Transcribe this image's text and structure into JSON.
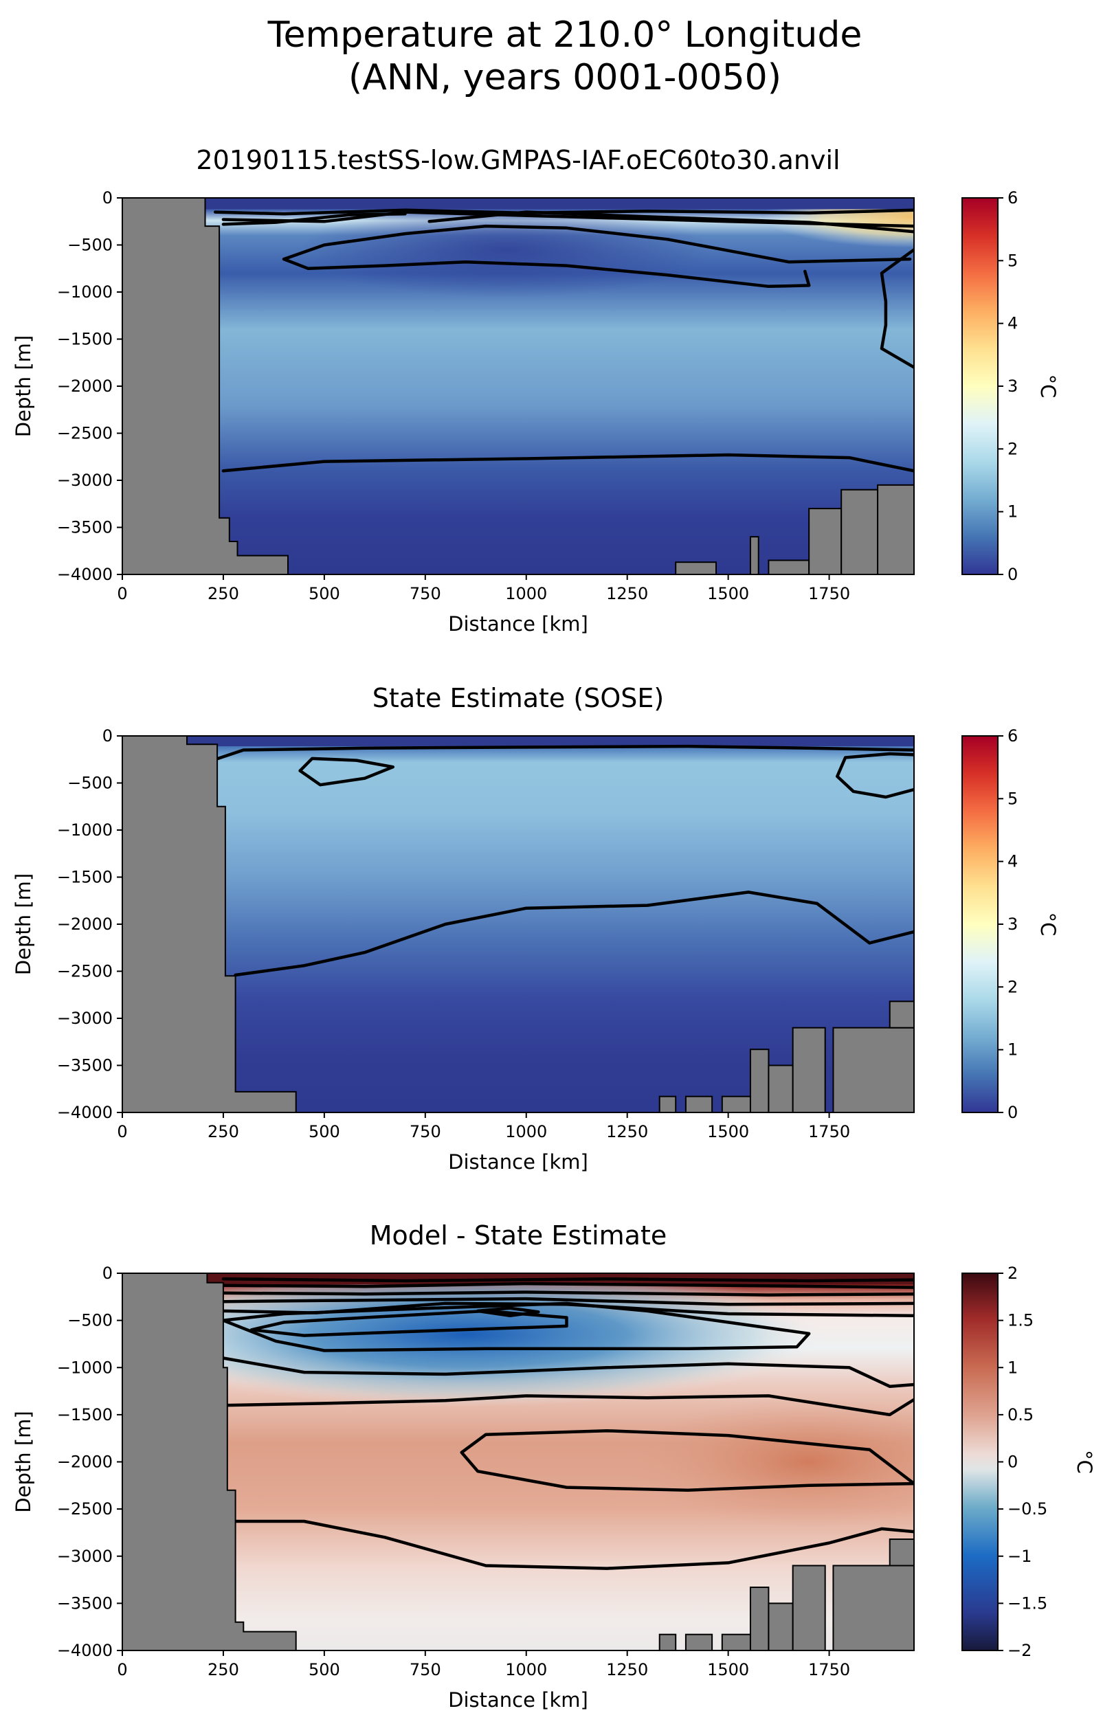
{
  "figure": {
    "title_line1": "Temperature at 210.0° Longitude",
    "title_line2": "(ANN, years 0001-0050)"
  },
  "chart_data": [
    {
      "type": "heatmap",
      "title": "20190115.testSS-low.GMPAS-IAF.oEC60to30.anvil",
      "xlabel": "Distance [km]",
      "ylabel": "Depth [m]",
      "xlim": [
        0,
        1960
      ],
      "ylim": [
        -4000,
        0
      ],
      "xticks": [
        0,
        250,
        500,
        750,
        1000,
        1250,
        1500,
        1750
      ],
      "yticks": [
        0,
        -500,
        -1000,
        -1500,
        -2000,
        -2500,
        -3000,
        -3500,
        -4000
      ],
      "colorbar": {
        "label": "°C",
        "range": [
          0,
          6
        ],
        "ticks": [
          0,
          1,
          2,
          3,
          4,
          5,
          6
        ],
        "colormap": "RdYlBu_r"
      },
      "land_color": "#808080"
    },
    {
      "type": "heatmap",
      "title": "State Estimate (SOSE)",
      "xlabel": "Distance [km]",
      "ylabel": "Depth [m]",
      "xlim": [
        0,
        1960
      ],
      "ylim": [
        -4000,
        0
      ],
      "xticks": [
        0,
        250,
        500,
        750,
        1000,
        1250,
        1500,
        1750
      ],
      "yticks": [
        0,
        -500,
        -1000,
        -1500,
        -2000,
        -2500,
        -3000,
        -3500,
        -4000
      ],
      "colorbar": {
        "label": "°C",
        "range": [
          0,
          6
        ],
        "ticks": [
          0,
          1,
          2,
          3,
          4,
          5,
          6
        ],
        "colormap": "RdYlBu_r"
      },
      "land_color": "#808080"
    },
    {
      "type": "heatmap",
      "title": "Model - State Estimate",
      "xlabel": "Distance [km]",
      "ylabel": "Depth [m]",
      "xlim": [
        0,
        1960
      ],
      "ylim": [
        -4000,
        0
      ],
      "xticks": [
        0,
        250,
        500,
        750,
        1000,
        1250,
        1500,
        1750
      ],
      "yticks": [
        0,
        -500,
        -1000,
        -1500,
        -2000,
        -2500,
        -3000,
        -3500,
        -4000
      ],
      "colorbar": {
        "label": "°C",
        "range": [
          -2.0,
          2.0
        ],
        "ticks": [
          -2.0,
          -1.5,
          -1.0,
          -0.5,
          0.0,
          0.5,
          1.0,
          1.5,
          2.0
        ],
        "colormap": "balance"
      },
      "land_color": "#808080"
    }
  ]
}
